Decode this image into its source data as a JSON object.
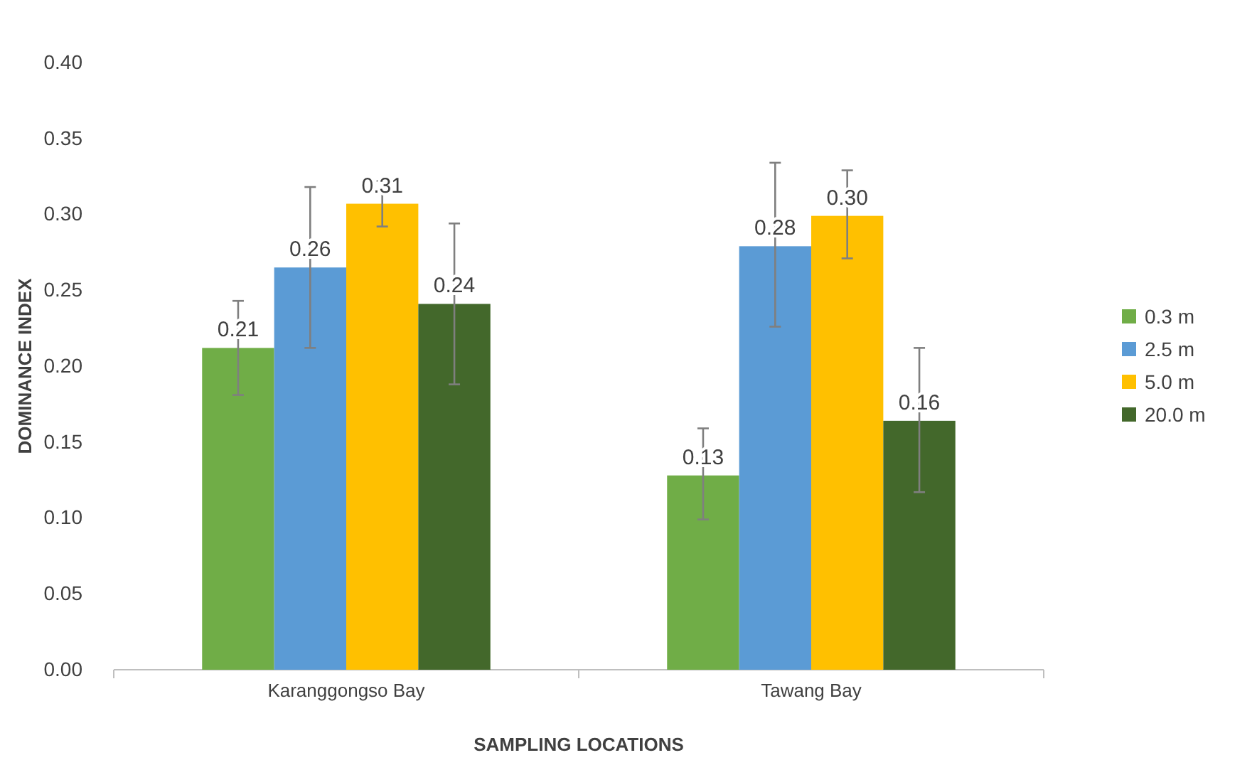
{
  "chart_data": {
    "type": "bar",
    "xlabel": "SAMPLING LOCATIONS",
    "ylabel": "DOMINANCE INDEX",
    "categories": [
      "Karanggongso Bay",
      "Tawang Bay"
    ],
    "series": [
      {
        "name": "0.3 m",
        "color": "#70ad47",
        "values": [
          0.212,
          0.128
        ],
        "value_labels": [
          "0.21",
          "0.13"
        ],
        "errors": [
          [
            0.181,
            0.243
          ],
          [
            0.099,
            0.159
          ]
        ]
      },
      {
        "name": "2.5 m",
        "color": "#5b9bd5",
        "values": [
          0.265,
          0.279
        ],
        "value_labels": [
          "0.26",
          "0.28"
        ],
        "errors": [
          [
            0.212,
            0.318
          ],
          [
            0.226,
            0.334
          ]
        ]
      },
      {
        "name": "5.0 m",
        "color": "#ffc000",
        "values": [
          0.307,
          0.299
        ],
        "value_labels": [
          "0.31",
          "0.30"
        ],
        "errors": [
          [
            0.292,
            0.322
          ],
          [
            0.271,
            0.329
          ]
        ]
      },
      {
        "name": "20.0 m",
        "color": "#43682b",
        "values": [
          0.241,
          0.164
        ],
        "value_labels": [
          "0.24",
          "0.16"
        ],
        "errors": [
          [
            0.188,
            0.294
          ],
          [
            0.117,
            0.212
          ]
        ]
      }
    ],
    "ylim": [
      0,
      0.4
    ],
    "yticks": [
      {
        "value": 0,
        "label": "0.00"
      },
      {
        "value": 0.05,
        "label": "0.05"
      },
      {
        "value": 0.1,
        "label": "0.10"
      },
      {
        "value": 0.15,
        "label": "0.15"
      },
      {
        "value": 0.2,
        "label": "0.20"
      },
      {
        "value": 0.25,
        "label": "0.25"
      },
      {
        "value": 0.3,
        "label": "0.30"
      },
      {
        "value": 0.35,
        "label": "0.35"
      },
      {
        "value": 0.4,
        "label": "0.40"
      }
    ],
    "grid": false,
    "legend": "right"
  }
}
